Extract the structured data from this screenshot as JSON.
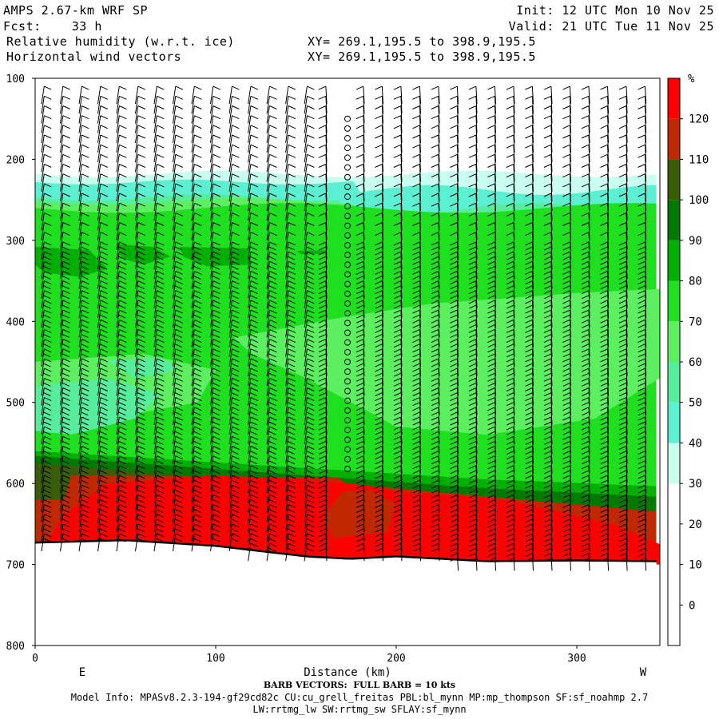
{
  "header": {
    "model": "AMPS 2.67-km WRF SP",
    "fcst": "Fcst:    33 h",
    "field1": "Relative humidity (w.r.t. ice)",
    "field2": "Horizontal wind vectors",
    "xy1": "XY= 269.1,195.5 to 398.9,195.5",
    "xy2": "XY= 269.1,195.5 to 398.9,195.5",
    "init": "Init: 12 UTC Mon 10 Nov 25",
    "valid": "Valid: 21 UTC Tue 11 Nov 25"
  },
  "footer": {
    "barb": "BARB VECTORS:  FULL BARB = 10 kts",
    "model_info": "Model Info: MPASv8.2.3-194-gf29cd82c CU:cu_grell_freitas PBL:bl_mynn MP:mp_thompson SF:sf_noahmp 2.7",
    "model_info2": "LW:rrtmg_lw SW:rrtmg_sw SFLAY:sf_mynn"
  },
  "chart_data": {
    "type": "heatmap",
    "xlabel": "Distance (km)",
    "xlim": [
      0,
      346
    ],
    "x_ticks": [
      0,
      100,
      200,
      300
    ],
    "x_end_labels": [
      "E",
      "W"
    ],
    "ylim": [
      800,
      100
    ],
    "y_ticks": [
      100,
      200,
      300,
      400,
      500,
      600,
      700,
      800
    ],
    "ylabel": "",
    "colorbar": {
      "unit": "%",
      "bounds": [
        -10,
        0,
        10,
        20,
        30,
        40,
        50,
        60,
        70,
        80,
        90,
        100,
        110,
        120,
        130
      ],
      "labels": [
        0,
        10,
        20,
        30,
        40,
        50,
        60,
        70,
        80,
        90,
        100,
        110,
        120
      ],
      "colors": [
        "#ffffff",
        "#ffffff",
        "#ffffff",
        "#ffffff",
        "#c8ffee",
        "#5cf0d2",
        "#56ee9c",
        "#5cf060",
        "#1ee01e",
        "#00b000",
        "#007a00",
        "#3a5e08",
        "#c02800",
        "#ff0000"
      ]
    },
    "terrain_pressure": {
      "x": [
        0,
        50,
        100,
        150,
        175,
        200,
        250,
        300,
        346
      ],
      "p": [
        673,
        670,
        677,
        690,
        693,
        690,
        696,
        695,
        696
      ]
    },
    "calm_column_x": 173,
    "calm_column_p": [
      150,
      590
    ]
  }
}
